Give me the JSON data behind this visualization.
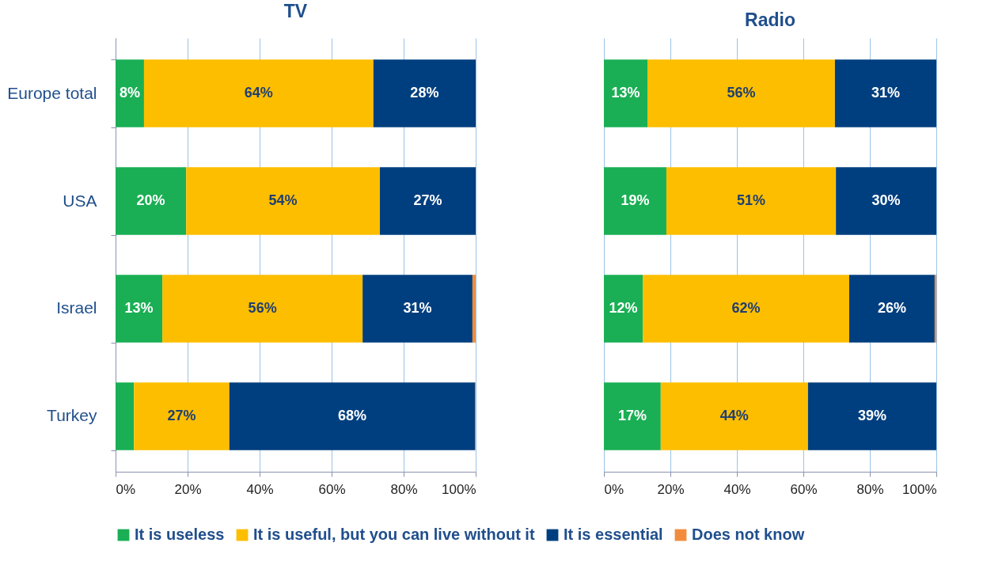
{
  "chart_data": [
    {
      "type": "bar",
      "title": "TV",
      "orientation": "horizontal",
      "stacked": true,
      "categories": [
        "Europe total",
        "USA",
        "Israel",
        "Turkey"
      ],
      "xlim": [
        0,
        100
      ],
      "xticks": [
        {
          "value": 0,
          "label": "0%"
        },
        {
          "value": 20,
          "label": "20%"
        },
        {
          "value": 40,
          "label": "40%"
        },
        {
          "value": 60,
          "label": "60%"
        },
        {
          "value": 80,
          "label": "80%"
        },
        {
          "value": 100,
          "label": "100%"
        }
      ],
      "grid": "x",
      "legend": "bottom",
      "series": [
        {
          "name": "It is useless",
          "color": "#1aaf54",
          "values": [
            7.9,
            19.6,
            13.0,
            5.1
          ],
          "value_labels": [
            "8%",
            "20%",
            "13%",
            null
          ]
        },
        {
          "name": "It is useful, but you can live without it",
          "color": "#fdbe00",
          "values": [
            63.7,
            53.8,
            55.6,
            26.5
          ],
          "value_labels": [
            "64%",
            "54%",
            "56%",
            "27%"
          ]
        },
        {
          "name": "It is essential",
          "color": "#003f7f",
          "values": [
            28.4,
            26.6,
            30.5,
            68.2
          ],
          "value_labels": [
            "28%",
            "27%",
            "31%",
            "68%"
          ]
        },
        {
          "name": "Does not know",
          "color": "#f28c3c",
          "values": [
            0,
            0,
            0.9,
            0.2
          ],
          "value_labels": [
            null,
            null,
            null,
            null
          ]
        }
      ]
    },
    {
      "type": "bar",
      "title": "Radio",
      "orientation": "horizontal",
      "stacked": true,
      "categories": [
        null,
        null,
        null,
        null
      ],
      "tick_labels": "x",
      "xlim": [
        0,
        100
      ],
      "xticks": [
        {
          "value": 0,
          "label": "0%"
        },
        {
          "value": 20,
          "label": "20%"
        },
        {
          "value": 40,
          "label": "40%"
        },
        {
          "value": 60,
          "label": "60%"
        },
        {
          "value": 80,
          "label": "80%"
        },
        {
          "value": 100,
          "label": "100%"
        }
      ],
      "grid": "x",
      "legend": "bottom",
      "series": [
        {
          "name": "It is useless",
          "color": "#1aaf54",
          "values": [
            13.1,
            18.8,
            11.7,
            17.1
          ],
          "value_labels": [
            "13%",
            "19%",
            "12%",
            "17%"
          ]
        },
        {
          "name": "It is useful, but you can live without it",
          "color": "#fdbe00",
          "values": [
            56.4,
            51.0,
            62.1,
            44.3
          ],
          "value_labels": [
            "56%",
            "51%",
            "62%",
            "44%"
          ]
        },
        {
          "name": "It is essential",
          "color": "#003f7f",
          "values": [
            30.5,
            30.2,
            25.7,
            38.6
          ],
          "value_labels": [
            "31%",
            "30%",
            "26%",
            "39%"
          ]
        },
        {
          "name": "Does not know",
          "color": "#f28c3c",
          "values": [
            0,
            0,
            0.5,
            0
          ],
          "value_labels": [
            null,
            null,
            null,
            null
          ]
        }
      ]
    }
  ]
}
